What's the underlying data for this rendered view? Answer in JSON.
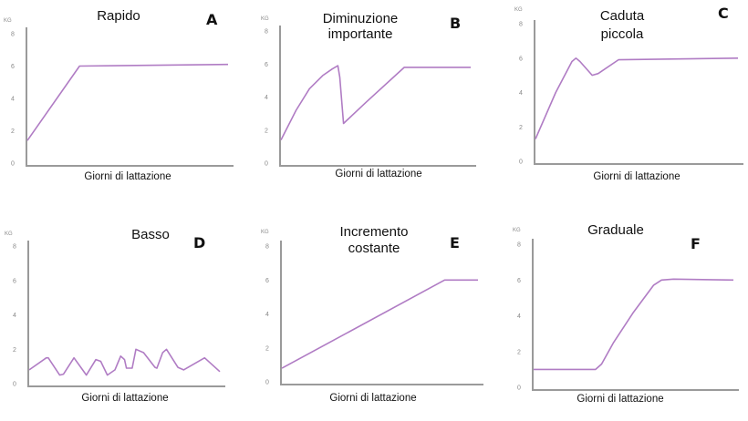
{
  "colors": {
    "line": "#b07cc4",
    "axis": "#9a9a9a"
  },
  "chart_data": [
    {
      "type": "line",
      "panel": "A",
      "title": [
        "Rapido"
      ],
      "ylabel": "KG",
      "xlabel": "Giorni di lattazione",
      "yticks": [
        "0",
        "2",
        "4",
        "6",
        "8"
      ],
      "ylim": [
        0,
        8
      ],
      "xlim": [
        0,
        100
      ],
      "x": [
        0,
        26,
        100
      ],
      "y": [
        1.4,
        6.0,
        6.1
      ]
    },
    {
      "type": "line",
      "panel": "B",
      "title": [
        "Diminuzione",
        "importante"
      ],
      "ylabel": "KG",
      "xlabel": "Giorni di lattazione",
      "yticks": [
        "0",
        "2",
        "4",
        "6",
        "8"
      ],
      "ylim": [
        0,
        8
      ],
      "xlim": [
        0,
        100
      ],
      "x": [
        0,
        8,
        15,
        22,
        27,
        30,
        31,
        33,
        45,
        65,
        100
      ],
      "y": [
        1.4,
        3.2,
        4.5,
        5.3,
        5.7,
        5.9,
        5.2,
        2.4,
        3.7,
        5.8,
        5.8
      ]
    },
    {
      "type": "line",
      "panel": "C",
      "title": [
        "Caduta",
        "piccola"
      ],
      "ylabel": "KG",
      "xlabel": "Giorni di lattazione",
      "yticks": [
        "0",
        "2",
        "4",
        "6",
        "8"
      ],
      "ylim": [
        0,
        8
      ],
      "xlim": [
        0,
        100
      ],
      "x": [
        0,
        10,
        18,
        20,
        22,
        28,
        31,
        41,
        100
      ],
      "y": [
        1.3,
        4.0,
        5.8,
        6.0,
        5.8,
        5.0,
        5.1,
        5.9,
        6.0
      ]
    },
    {
      "type": "line",
      "panel": "D",
      "title": [
        "Basso"
      ],
      "ylabel": "KG",
      "xlabel": "Giorni di lattazione",
      "yticks": [
        "0",
        "2",
        "4",
        "6",
        "8"
      ],
      "ylim": [
        0,
        8
      ],
      "xlim": [
        0,
        100
      ],
      "x": [
        0,
        9,
        10,
        16,
        18,
        23.5,
        30,
        35,
        37.5,
        41,
        45,
        48,
        50,
        51,
        54,
        56,
        60,
        66,
        67,
        70,
        72,
        78,
        81,
        92,
        100
      ],
      "y": [
        0.8,
        1.5,
        1.5,
        0.5,
        0.55,
        1.5,
        0.5,
        1.4,
        1.3,
        0.5,
        0.8,
        1.6,
        1.4,
        0.9,
        0.9,
        2.0,
        1.8,
        0.95,
        0.9,
        1.8,
        2.0,
        0.95,
        0.8,
        1.5,
        0.7
      ]
    },
    {
      "type": "line",
      "panel": "E",
      "title": [
        "Incremento",
        "costante"
      ],
      "ylabel": "KG",
      "xlabel": "Giorni di lattazione",
      "yticks": [
        "0",
        "2",
        "4",
        "6",
        "8"
      ],
      "ylim": [
        0,
        8
      ],
      "xlim": [
        0,
        100
      ],
      "x": [
        0,
        83,
        100
      ],
      "y": [
        0.8,
        6.0,
        6.0
      ]
    },
    {
      "type": "line",
      "panel": "F",
      "title": [
        "Graduale"
      ],
      "ylabel": "KG",
      "xlabel": "Giorni di lattazione",
      "yticks": [
        "0",
        "2",
        "4",
        "6",
        "8"
      ],
      "ylim": [
        0,
        8
      ],
      "xlim": [
        0,
        100
      ],
      "x": [
        0,
        31,
        34,
        40,
        50,
        60,
        64,
        70,
        100
      ],
      "y": [
        1.0,
        1.0,
        1.3,
        2.5,
        4.2,
        5.7,
        6.0,
        6.05,
        6.0
      ]
    }
  ]
}
